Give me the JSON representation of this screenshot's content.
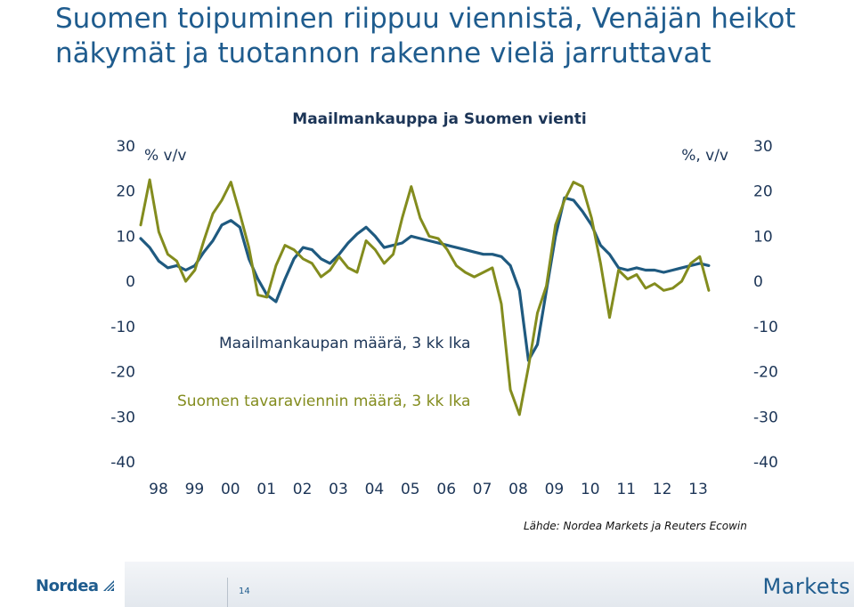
{
  "slide": {
    "title_line1": "Suomen toipuminen riippuu viennistä, Venäjän heikot",
    "title_line2": "näkymät ja tuotannon rakenne vielä jarruttavat"
  },
  "chart_data": {
    "type": "line",
    "title": "Maailmankauppa ja Suomen vienti",
    "ylabel_left": "% v/v",
    "ylabel_right": "%, v/v",
    "ylim": [
      -40,
      30
    ],
    "yticks": [
      30,
      20,
      10,
      0,
      -10,
      -20,
      -30,
      -40
    ],
    "xlim": [
      1998.0,
      2014.0
    ],
    "xtick_labels": [
      "98",
      "99",
      "00",
      "01",
      "02",
      "03",
      "04",
      "05",
      "06",
      "07",
      "08",
      "09",
      "10",
      "11",
      "12",
      "13"
    ],
    "grid": false,
    "legend": "inline labels",
    "series": [
      {
        "name": "Maailmankaupan määrä, 3 kk lka",
        "color": "#1f5a80",
        "x": [
          1998.0,
          1998.25,
          1998.5,
          1998.75,
          1999.0,
          1999.25,
          1999.5,
          1999.75,
          2000.0,
          2000.25,
          2000.5,
          2000.75,
          2001.0,
          2001.25,
          2001.5,
          2001.75,
          2002.0,
          2002.25,
          2002.5,
          2002.75,
          2003.0,
          2003.25,
          2003.5,
          2003.75,
          2004.0,
          2004.25,
          2004.5,
          2004.75,
          2005.0,
          2005.25,
          2005.5,
          2005.75,
          2006.0,
          2006.25,
          2006.5,
          2006.75,
          2007.0,
          2007.25,
          2007.5,
          2007.75,
          2008.0,
          2008.25,
          2008.5,
          2008.75,
          2009.0,
          2009.25,
          2009.5,
          2009.75,
          2010.0,
          2010.25,
          2010.5,
          2010.75,
          2011.0,
          2011.25,
          2011.5,
          2011.75,
          2012.0,
          2012.25,
          2012.5,
          2012.75,
          2013.0,
          2013.25,
          2013.5,
          2013.75
        ],
        "y": [
          9.5,
          7.5,
          4.5,
          3.0,
          3.5,
          2.5,
          3.5,
          6.5,
          9.0,
          12.5,
          13.5,
          12.0,
          5.0,
          0.5,
          -3.0,
          -4.5,
          0.5,
          5.0,
          7.5,
          7.0,
          5.0,
          4.0,
          6.0,
          8.5,
          10.5,
          12.0,
          10.0,
          7.5,
          8.0,
          8.5,
          10.0,
          9.5,
          9.0,
          8.5,
          8.0,
          7.5,
          7.0,
          6.5,
          6.0,
          6.0,
          5.5,
          3.5,
          -2.0,
          -17.5,
          -14.0,
          -2.0,
          10.0,
          18.5,
          18.0,
          15.5,
          12.5,
          8.0,
          6.0,
          3.0,
          2.5,
          3.0,
          2.5,
          2.5,
          2.0,
          2.5,
          3.0,
          3.5,
          4.0,
          3.5
        ]
      },
      {
        "name": "Suomen tavaraviennin määrä, 3 kk lka",
        "color": "#838c1e",
        "x": [
          1998.0,
          1998.25,
          1998.5,
          1998.75,
          1999.0,
          1999.25,
          1999.5,
          1999.75,
          2000.0,
          2000.25,
          2000.5,
          2000.75,
          2001.0,
          2001.25,
          2001.5,
          2001.75,
          2002.0,
          2002.25,
          2002.5,
          2002.75,
          2003.0,
          2003.25,
          2003.5,
          2003.75,
          2004.0,
          2004.25,
          2004.5,
          2004.75,
          2005.0,
          2005.25,
          2005.5,
          2005.75,
          2006.0,
          2006.25,
          2006.5,
          2006.75,
          2007.0,
          2007.25,
          2007.5,
          2007.75,
          2008.0,
          2008.25,
          2008.5,
          2008.75,
          2009.0,
          2009.25,
          2009.5,
          2009.75,
          2010.0,
          2010.25,
          2010.5,
          2010.75,
          2011.0,
          2011.25,
          2011.5,
          2011.75,
          2012.0,
          2012.25,
          2012.5,
          2012.75,
          2013.0,
          2013.25,
          2013.5,
          2013.75
        ],
        "y": [
          12.5,
          22.5,
          11.0,
          6.0,
          4.5,
          0.0,
          2.5,
          9.0,
          15.0,
          18.0,
          22.0,
          15.0,
          7.5,
          -3.0,
          -3.5,
          3.5,
          8.0,
          7.0,
          5.0,
          4.0,
          1.0,
          2.5,
          5.5,
          3.0,
          2.0,
          9.0,
          7.0,
          4.0,
          6.0,
          14.0,
          21.0,
          14.0,
          10.0,
          9.5,
          7.0,
          3.5,
          2.0,
          1.0,
          2.0,
          3.0,
          -5.0,
          -24.0,
          -29.5,
          -19.0,
          -7.0,
          -1.0,
          12.5,
          18.0,
          22.0,
          21.0,
          14.0,
          4.0,
          -8.0,
          2.5,
          0.5,
          1.5,
          -1.5,
          -0.5,
          -2.0,
          -1.5,
          0.0,
          4.0,
          5.5,
          -2.0
        ]
      }
    ]
  },
  "source": "Lähde: Nordea Markets ja Reuters Ecowin",
  "footer": {
    "logo_text": "Nordea",
    "page_number": "14",
    "brand": "Markets"
  }
}
